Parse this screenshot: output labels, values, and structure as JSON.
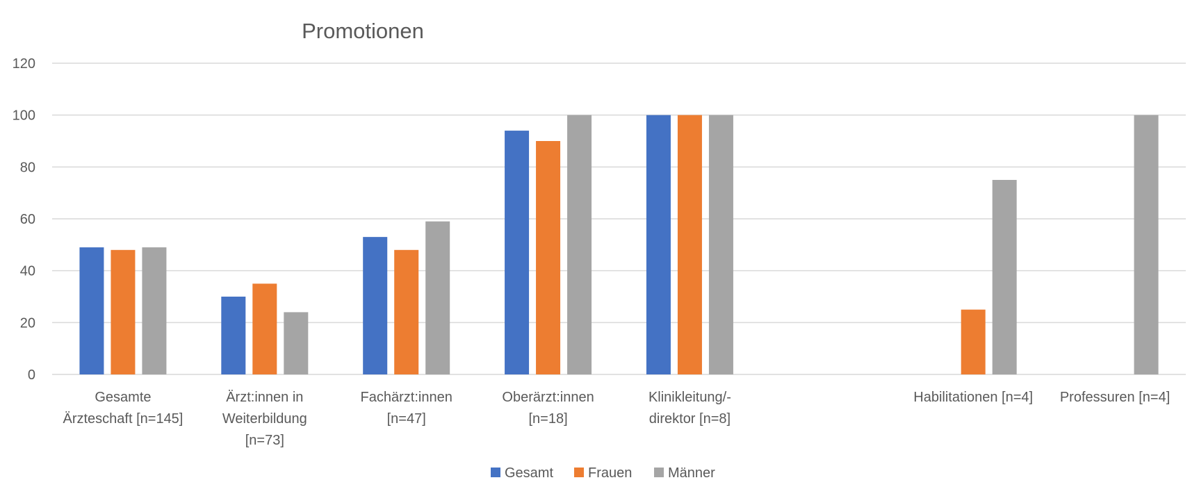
{
  "chart_data": {
    "type": "bar",
    "title": "Promotionen",
    "xlabel": "",
    "ylabel": "",
    "ylim": [
      0,
      120
    ],
    "yticks": [
      0,
      20,
      40,
      60,
      80,
      100,
      120
    ],
    "grid": true,
    "legend_position": "bottom",
    "categories": [
      [
        "Gesamte",
        "Ärzteschaft [n=145]"
      ],
      [
        "Ärzt:innen in",
        "Weiterbildung",
        "[n=73]"
      ],
      [
        "Fachärzt:innen",
        "[n=47]"
      ],
      [
        "Oberärzt:innen",
        "[n=18]"
      ],
      [
        "Klinikleitung/-",
        "direktor [n=8]"
      ],
      [],
      [
        "Habilitationen [n=4]"
      ],
      [
        "Professuren [n=4]"
      ]
    ],
    "series": [
      {
        "name": "Gesamt",
        "color": "#4472c4",
        "values": [
          49,
          30,
          53,
          94,
          100,
          null,
          null,
          null
        ]
      },
      {
        "name": "Frauen",
        "color": "#ed7d31",
        "values": [
          48,
          35,
          48,
          90,
          100,
          null,
          25,
          null
        ]
      },
      {
        "name": "Männer",
        "color": "#a5a5a5",
        "values": [
          49,
          24,
          59,
          100,
          100,
          null,
          75,
          100
        ]
      }
    ]
  }
}
